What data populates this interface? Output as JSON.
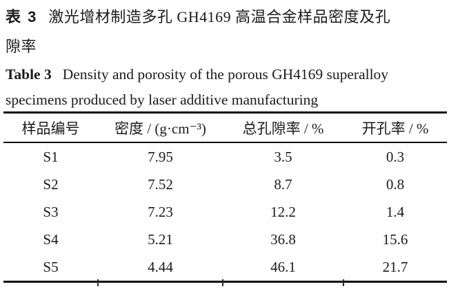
{
  "caption_zh": {
    "label": "表 3",
    "line1": "激光增材制造多孔 GH4169 高温合金样品密度及孔",
    "line2": "隙率"
  },
  "caption_en": {
    "label": "Table 3",
    "line1": "Density and porosity of the porous GH4169 superalloy",
    "line2": "specimens produced by laser additive manufacturing"
  },
  "table": {
    "headers": [
      "样品编号",
      "密度 / (g·cm⁻³)",
      "总孔隙率 / %",
      "开孔率 / %"
    ],
    "rows": [
      [
        "S1",
        "7.95",
        "3.5",
        "0.3"
      ],
      [
        "S2",
        "7.52",
        "8.7",
        "0.8"
      ],
      [
        "S3",
        "7.23",
        "12.2",
        "1.4"
      ],
      [
        "S4",
        "5.21",
        "36.8",
        "15.6"
      ],
      [
        "S5",
        "4.44",
        "46.1",
        "21.7"
      ]
    ]
  },
  "chart_data": {
    "type": "table",
    "title": "表 3 激光增材制造多孔 GH4169 高温合金样品密度及孔隙率 / Table 3 Density and porosity of the porous GH4169 superalloy specimens produced by laser additive manufacturing",
    "columns": [
      "样品编号",
      "密度 / (g·cm⁻³)",
      "总孔隙率 / %",
      "开孔率 / %"
    ],
    "rows": [
      {
        "sample": "S1",
        "density": 7.95,
        "total_porosity_pct": 3.5,
        "open_porosity_pct": 0.3
      },
      {
        "sample": "S2",
        "density": 7.52,
        "total_porosity_pct": 8.7,
        "open_porosity_pct": 0.8
      },
      {
        "sample": "S3",
        "density": 7.23,
        "total_porosity_pct": 12.2,
        "open_porosity_pct": 1.4
      },
      {
        "sample": "S4",
        "density": 5.21,
        "total_porosity_pct": 36.8,
        "open_porosity_pct": 15.6
      },
      {
        "sample": "S5",
        "density": 4.44,
        "total_porosity_pct": 46.1,
        "open_porosity_pct": 21.7
      }
    ],
    "colors": {
      "text": "#1b1b1b",
      "rules": "#0a0a0a",
      "background": "#fefefe"
    }
  }
}
